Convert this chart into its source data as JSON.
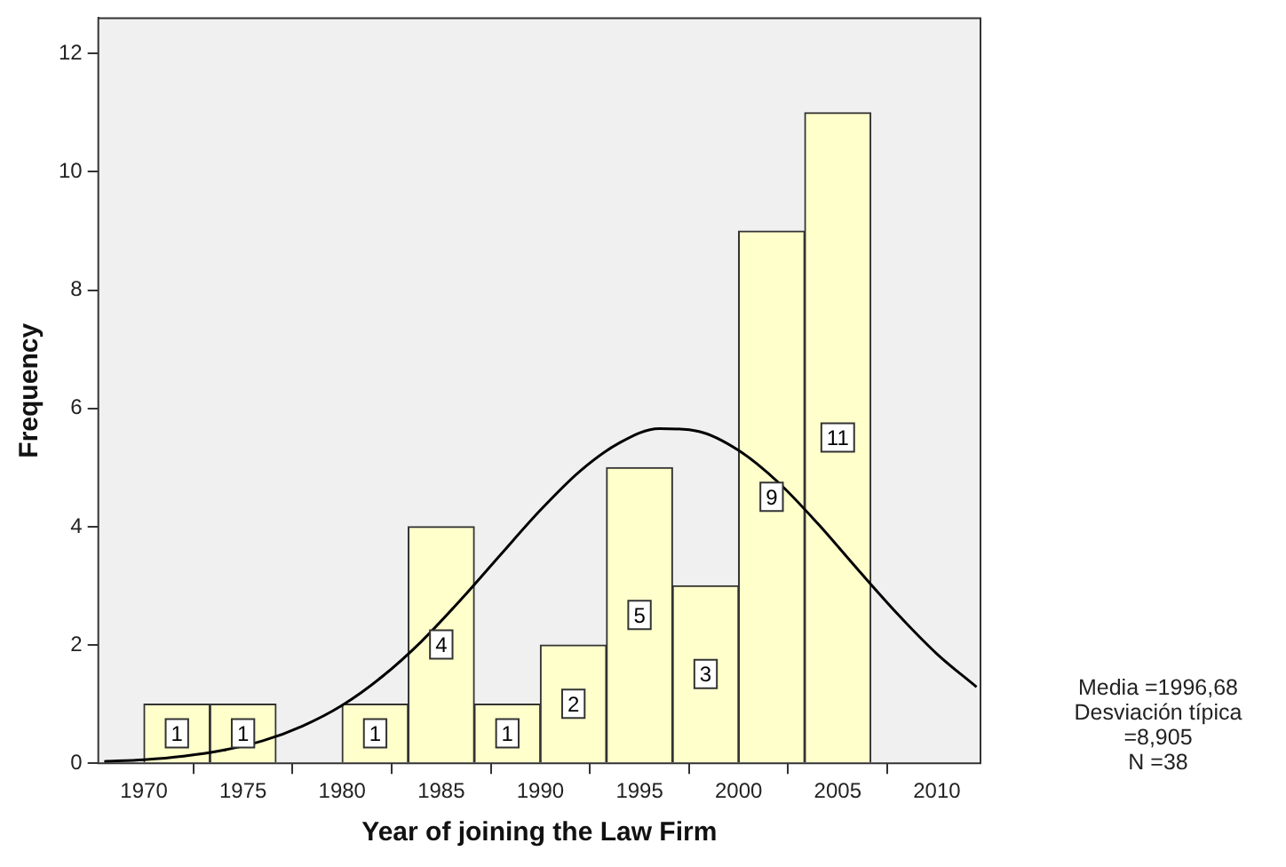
{
  "chart_data": {
    "type": "histogram",
    "xlabel": "Year of joining the Law Firm",
    "ylabel": "Frequency",
    "bins": [
      1970,
      1973.33,
      1976.67,
      1980,
      1983.33,
      1986.67,
      1990,
      1993.33,
      1996.67,
      2000,
      2003.33,
      2006.67
    ],
    "values": [
      1,
      1,
      0,
      1,
      4,
      1,
      2,
      5,
      3,
      9,
      11
    ],
    "value_labels": [
      "1",
      "1",
      null,
      "1",
      "4",
      "1",
      "2",
      "5",
      "3",
      "9",
      "11"
    ],
    "color": "#ffffcc",
    "series": [
      {
        "type": "line",
        "color": "#000000",
        "x": [
          1968,
          1970,
          1972,
          1974,
          1976,
          1978,
          1980,
          1982,
          1984,
          1986,
          1988,
          1990,
          1992,
          1994,
          1996,
          1998,
          2000,
          2002,
          2004,
          2006,
          2008,
          2010,
          2012
        ],
        "values": [
          0.03,
          0.06,
          0.12,
          0.22,
          0.38,
          0.63,
          0.98,
          1.46,
          2.06,
          2.77,
          3.53,
          4.28,
          4.94,
          5.42,
          5.66,
          5.61,
          5.29,
          4.75,
          4.05,
          3.28,
          2.53,
          1.85,
          1.29
        ]
      }
    ],
    "xlim": [
      1967.7,
      2012.2
    ],
    "xticks": [
      1970,
      1975,
      1980,
      1985,
      1990,
      1995,
      2000,
      2005,
      2010
    ],
    "ylim": [
      0,
      12.6
    ],
    "yticks": [
      0,
      2,
      4,
      6,
      8,
      10,
      12
    ],
    "legend": false,
    "annotations": [
      "Media =1996,68",
      "Desviación típica =8,905",
      "N =38"
    ]
  }
}
